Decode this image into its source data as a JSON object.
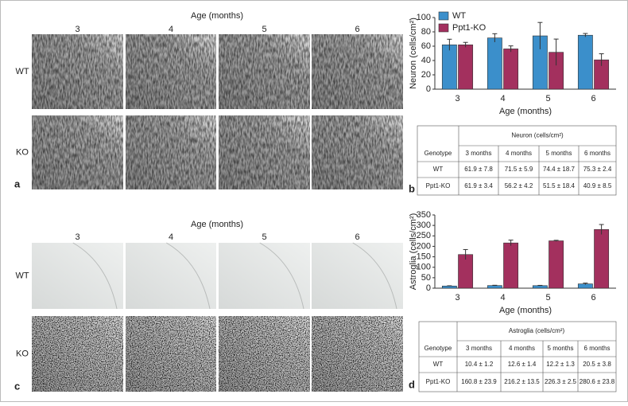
{
  "figure": {
    "panel_a": {
      "letter": "a",
      "title": "Age (months)",
      "columns": [
        "3",
        "4",
        "5",
        "6"
      ],
      "rows": [
        "WT",
        "KO"
      ]
    },
    "panel_c": {
      "letter": "c",
      "title": "Age (months)",
      "columns": [
        "3",
        "4",
        "5",
        "6"
      ],
      "rows": [
        "WT",
        "KO"
      ]
    },
    "table_b": {
      "letter": "b",
      "header": "Neuron (cells/cm²)",
      "columns": [
        "Genotype",
        "3 months",
        "4 months",
        "5 months",
        "6 months"
      ],
      "rows": [
        [
          "WT",
          "61.9 ± 7.8",
          "71.5 ± 5.9",
          "74.4 ± 18.7",
          "75.3 ± 2.4"
        ],
        [
          "Ppt1-KO",
          "61.9 ± 3.4",
          "56.2 ± 4.2",
          "51.5 ± 18.4",
          "40.9 ± 8.5"
        ]
      ]
    },
    "table_d": {
      "letter": "d",
      "header": "Astroglia (cells/cm²)",
      "columns": [
        "Genotype",
        "3 months",
        "4 months",
        "5 months",
        "6 months"
      ],
      "rows": [
        [
          "WT",
          "10.4 ± 1.2",
          "12.6 ± 1.4",
          "12.2 ± 1.3",
          "20.5 ± 3.8"
        ],
        [
          "Ppt1-KO",
          "160.8 ± 23.9",
          "216.2 ± 13.5",
          "226.3 ± 2.5",
          "280.6 ± 23.8"
        ]
      ]
    }
  },
  "chart_data": [
    {
      "type": "bar",
      "ylabel": "Neuron (cells/cm²)",
      "xlabel": "Age (months)",
      "categories": [
        "3",
        "4",
        "5",
        "6"
      ],
      "ylim": [
        0,
        100
      ],
      "yticks": [
        0,
        20,
        40,
        60,
        80,
        100
      ],
      "legend": "upper left",
      "series": [
        {
          "name": "WT",
          "color": "#3b8fcb",
          "values": [
            61.9,
            71.5,
            74.4,
            75.3
          ],
          "errors": [
            7.8,
            5.9,
            18.7,
            2.4
          ]
        },
        {
          "name": "Ppt1-KO",
          "color": "#a3305e",
          "values": [
            61.9,
            56.2,
            51.5,
            40.9
          ],
          "errors": [
            3.4,
            4.2,
            18.4,
            8.5
          ]
        }
      ]
    },
    {
      "type": "bar",
      "ylabel": "Astroglia (cells/cm²)",
      "xlabel": "Age (months)",
      "categories": [
        "3",
        "4",
        "5",
        "6"
      ],
      "ylim": [
        0,
        350
      ],
      "yticks": [
        0,
        50,
        100,
        150,
        200,
        250,
        300,
        350
      ],
      "series": [
        {
          "color": "#3b8fcb",
          "values": [
            10.4,
            12.6,
            12.2,
            20.5
          ],
          "errors": [
            1.2,
            1.4,
            1.3,
            3.8
          ]
        },
        {
          "color": "#a3305e",
          "values": [
            160.8,
            216.2,
            226.3,
            280.6
          ],
          "errors": [
            23.9,
            13.5,
            2.5,
            23.8
          ]
        }
      ]
    }
  ]
}
